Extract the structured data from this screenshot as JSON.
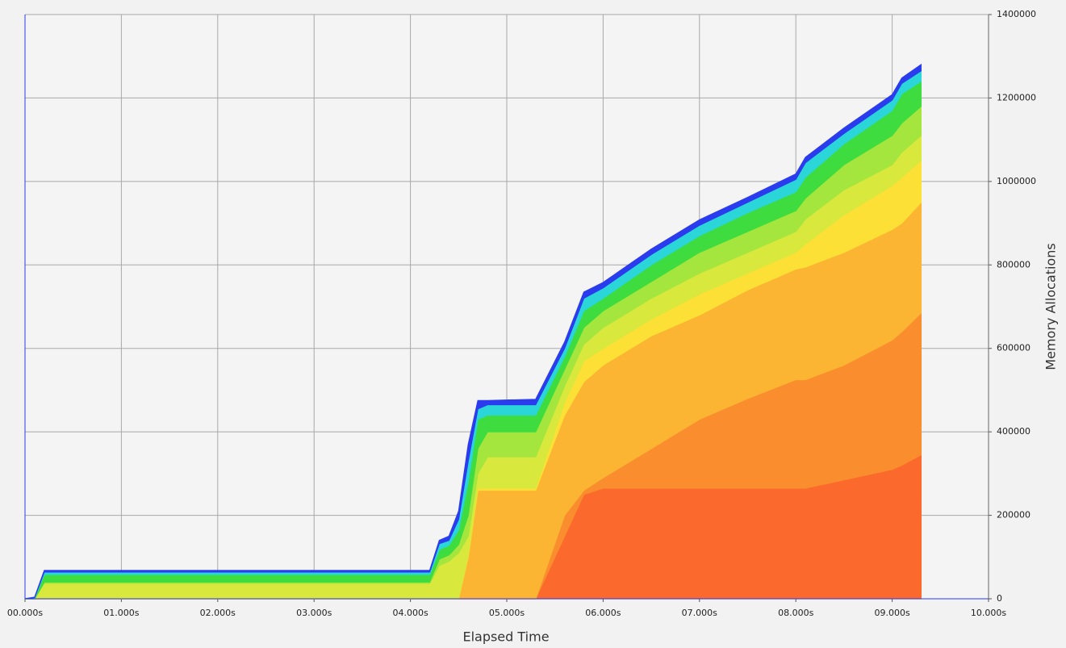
{
  "chart_data": {
    "type": "stacked_area",
    "xlabel": "Elapsed Time",
    "ylabel": "Memory Allocations",
    "x": [
      0,
      0.1,
      0.2,
      4.2,
      4.3,
      4.4,
      4.5,
      4.6,
      4.7,
      4.8,
      5.3,
      5.6,
      5.8,
      6.0,
      6.5,
      7.0,
      7.5,
      8.0,
      8.1,
      8.5,
      9.0,
      9.1,
      9.3
    ],
    "series": [
      {
        "color": "#fb6a2c",
        "values": [
          0,
          0,
          0,
          0,
          0,
          0,
          0,
          0,
          0,
          0,
          0,
          150000,
          250000,
          265000,
          265000,
          265000,
          265000,
          265000,
          265000,
          285000,
          310000,
          320000,
          345000
        ]
      },
      {
        "color": "#fa8e2e",
        "values": [
          0,
          0,
          0,
          0,
          0,
          0,
          0,
          0,
          0,
          0,
          0,
          50000,
          10000,
          25000,
          95000,
          165000,
          215000,
          260000,
          260000,
          275000,
          310000,
          320000,
          340000
        ]
      },
      {
        "color": "#fcb532",
        "values": [
          0,
          0,
          0,
          0,
          0,
          0,
          0,
          100000,
          260000,
          260000,
          260000,
          240000,
          260000,
          270000,
          270000,
          250000,
          260000,
          265000,
          270000,
          270000,
          265000,
          260000,
          265000
        ]
      },
      {
        "color": "#fde036",
        "values": [
          0,
          0,
          0,
          0,
          0,
          0,
          0,
          5000,
          5000,
          5000,
          5000,
          30000,
          50000,
          40000,
          40000,
          50000,
          40000,
          40000,
          55000,
          90000,
          105000,
          110000,
          100000
        ]
      },
      {
        "color": "#d8e83c",
        "values": [
          0,
          0,
          37000,
          37000,
          80000,
          90000,
          110000,
          45000,
          35000,
          75000,
          75000,
          40000,
          40000,
          50000,
          50000,
          50000,
          50000,
          50000,
          60000,
          60000,
          50000,
          60000,
          60000
        ]
      },
      {
        "color": "#a4e63e",
        "values": [
          0,
          0,
          3000,
          3000,
          15000,
          15000,
          20000,
          50000,
          60000,
          60000,
          60000,
          40000,
          40000,
          40000,
          40000,
          50000,
          50000,
          50000,
          50000,
          60000,
          70000,
          70000,
          70000
        ]
      },
      {
        "color": "#3edc3e",
        "values": [
          0,
          2000,
          18000,
          18000,
          23000,
          23000,
          35000,
          80000,
          70000,
          40000,
          40000,
          30000,
          40000,
          30000,
          40000,
          40000,
          45000,
          45000,
          50000,
          50000,
          60000,
          70000,
          60000
        ]
      },
      {
        "color": "#2ad6d8",
        "values": [
          0,
          1000,
          6000,
          6000,
          14000,
          12000,
          25000,
          50000,
          25000,
          25000,
          25000,
          20000,
          30000,
          25000,
          25000,
          25000,
          25000,
          30000,
          35000,
          25000,
          25000,
          25000,
          25000
        ]
      },
      {
        "color": "#2a3cee",
        "values": [
          0,
          1000,
          4000,
          4000,
          8000,
          10000,
          20000,
          40000,
          20000,
          10000,
          13000,
          15000,
          15000,
          13000,
          13000,
          13000,
          12000,
          13000,
          13000,
          13000,
          13000,
          13000,
          15000
        ]
      }
    ],
    "xlim": [
      0,
      10
    ],
    "xticks": [
      {
        "value": 0,
        "label": "00.000s"
      },
      {
        "value": 1,
        "label": "01.000s"
      },
      {
        "value": 2,
        "label": "02.000s"
      },
      {
        "value": 3,
        "label": "03.000s"
      },
      {
        "value": 4,
        "label": "04.000s"
      },
      {
        "value": 5,
        "label": "05.000s"
      },
      {
        "value": 6,
        "label": "06.000s"
      },
      {
        "value": 7,
        "label": "07.000s"
      },
      {
        "value": 8,
        "label": "08.000s"
      },
      {
        "value": 9,
        "label": "09.000s"
      },
      {
        "value": 10,
        "label": "10.000s"
      }
    ],
    "ylim": [
      0,
      1400000
    ],
    "yticks": [
      0,
      200000,
      400000,
      600000,
      800000,
      1000000,
      1200000,
      1400000
    ],
    "grid": true,
    "y_axis_side": "right"
  }
}
